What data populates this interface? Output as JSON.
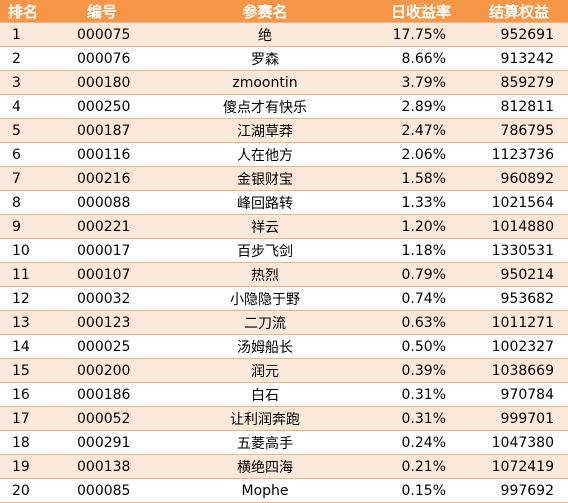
{
  "headers": {
    "rank": "排名",
    "id": "编号",
    "name": "参赛名",
    "rate": "日收益率",
    "equity": "结算权益"
  },
  "rows": [
    {
      "rank": "1",
      "id": "000075",
      "name": "绝",
      "rate": "17.75%",
      "equity": "952691"
    },
    {
      "rank": "2",
      "id": "000076",
      "name": "罗森",
      "rate": "8.66%",
      "equity": "913242"
    },
    {
      "rank": "3",
      "id": "000180",
      "name": "zmoontin",
      "rate": "3.79%",
      "equity": "859279"
    },
    {
      "rank": "4",
      "id": "000250",
      "name": "傻点才有快乐",
      "rate": "2.89%",
      "equity": "812811"
    },
    {
      "rank": "5",
      "id": "000187",
      "name": "江湖草莽",
      "rate": "2.47%",
      "equity": "786795"
    },
    {
      "rank": "6",
      "id": "000116",
      "name": "人在他方",
      "rate": "2.06%",
      "equity": "1123736"
    },
    {
      "rank": "7",
      "id": "000216",
      "name": "金银财宝",
      "rate": "1.58%",
      "equity": "960892"
    },
    {
      "rank": "8",
      "id": "000088",
      "name": "峰回路转",
      "rate": "1.33%",
      "equity": "1021564"
    },
    {
      "rank": "9",
      "id": "000221",
      "name": "祥云",
      "rate": "1.20%",
      "equity": "1014880"
    },
    {
      "rank": "10",
      "id": "000017",
      "name": "百步飞剑",
      "rate": "1.18%",
      "equity": "1330531"
    },
    {
      "rank": "11",
      "id": "000107",
      "name": "热烈",
      "rate": "0.79%",
      "equity": "950214"
    },
    {
      "rank": "12",
      "id": "000032",
      "name": "小隐隐于野",
      "rate": "0.74%",
      "equity": "953682"
    },
    {
      "rank": "13",
      "id": "000123",
      "name": "二刀流",
      "rate": "0.63%",
      "equity": "1011271"
    },
    {
      "rank": "14",
      "id": "000025",
      "name": "汤姆船长",
      "rate": "0.50%",
      "equity": "1002327"
    },
    {
      "rank": "15",
      "id": "000200",
      "name": "润元",
      "rate": "0.39%",
      "equity": "1038669"
    },
    {
      "rank": "16",
      "id": "000186",
      "name": "白石",
      "rate": "0.31%",
      "equity": "970784"
    },
    {
      "rank": "17",
      "id": "000052",
      "name": "让利润奔跑",
      "rate": "0.31%",
      "equity": "999701"
    },
    {
      "rank": "18",
      "id": "000291",
      "name": "五菱高手",
      "rate": "0.24%",
      "equity": "1047380"
    },
    {
      "rank": "19",
      "id": "000138",
      "name": "横绝四海",
      "rate": "0.21%",
      "equity": "1072419"
    },
    {
      "rank": "20",
      "id": "000085",
      "name": "Mophe",
      "rate": "0.15%",
      "equity": "997692"
    }
  ],
  "colors": {
    "header_bg": "#f79646",
    "header_text": "#ffffff",
    "row_shaded": "#fde9d9",
    "row_plain": "#ffffff",
    "row_border": "#f4b183"
  }
}
